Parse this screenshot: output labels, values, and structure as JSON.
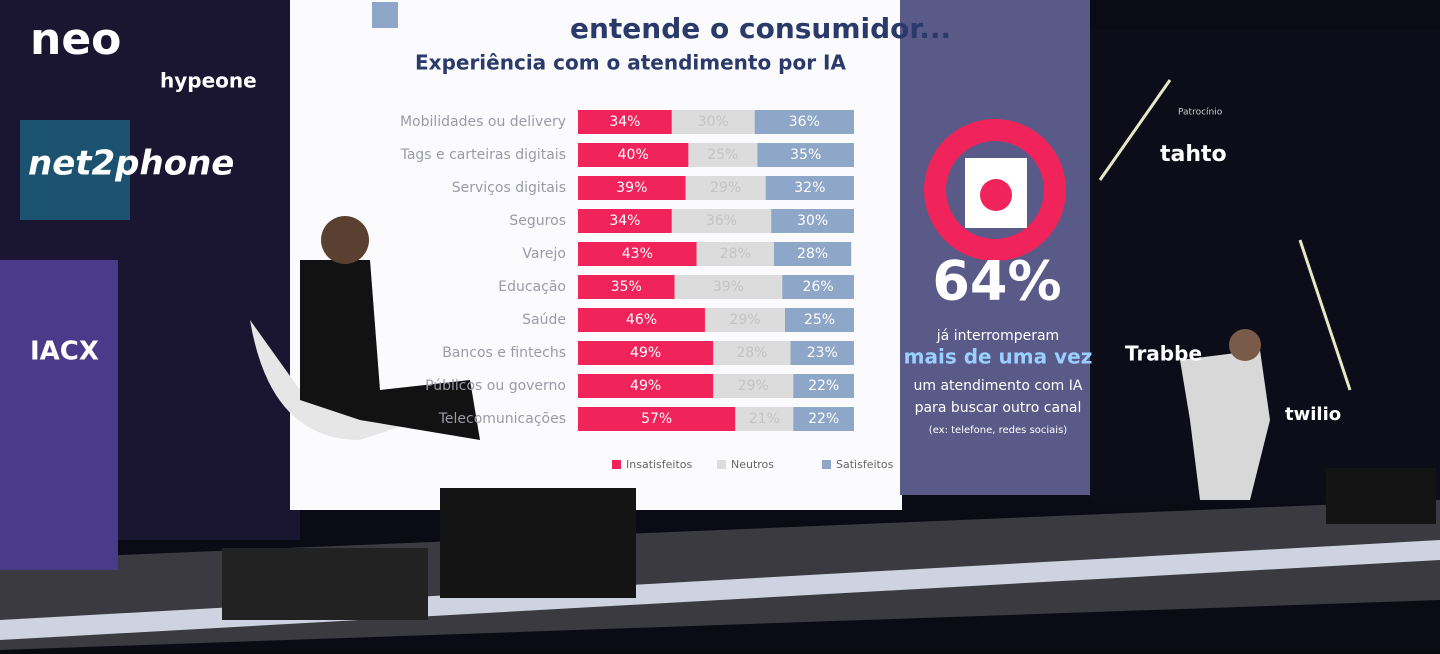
{
  "logos": {
    "neo": "neo",
    "hypeone": "hypeone",
    "net2phone": "net2phone",
    "iacx": "IACX"
  },
  "slide": {
    "headline": "entende o consumidor...",
    "title": "Experiência com o atendimento por IA",
    "categories": [
      "Mobilidades ou delivery",
      "Tags e carteiras digitais",
      "Serviços digitais",
      "Seguros",
      "Varejo",
      "Educação",
      "Saúde",
      "Bancos e fintechs",
      "Públicos ou governo",
      "Telecomunicações"
    ],
    "series": [
      {
        "name": "Insatisfeitos",
        "color": "#f0245a",
        "values": [
          34,
          40,
          39,
          34,
          43,
          35,
          46,
          49,
          49,
          57
        ],
        "value_labels": [
          "34%",
          "40%",
          "39%",
          "34%",
          "43%",
          "35%",
          "46%",
          "49%",
          "49%",
          "57%"
        ]
      },
      {
        "name": "Neutros",
        "color": "#dcdcdc",
        "values": [
          30,
          25,
          29,
          36,
          28,
          39,
          29,
          28,
          29,
          21
        ],
        "value_labels": [
          "30%",
          "25%",
          "29%",
          "36%",
          "28%",
          "39%",
          "29%",
          "28%",
          "29%",
          "21%"
        ]
      },
      {
        "name": "Satisfeitos",
        "color": "#8ea6c8",
        "values": [
          36,
          35,
          32,
          30,
          28,
          26,
          25,
          23,
          22,
          22
        ],
        "value_labels": [
          "36%",
          "35%",
          "32%",
          "30%",
          "28%",
          "26%",
          "25%",
          "23%",
          "22%",
          "22%"
        ]
      }
    ]
  },
  "stat": {
    "value": "64%",
    "lines": [
      "já interromperam",
      "mais de uma vez",
      "um atendimento com IA",
      "para buscar outro canal",
      "(ex: telefone, redes sociais)"
    ]
  },
  "sponsors": {
    "caption": "Patrocínio",
    "names": [
      "tahto",
      "Trabbe",
      "twilio"
    ]
  }
}
